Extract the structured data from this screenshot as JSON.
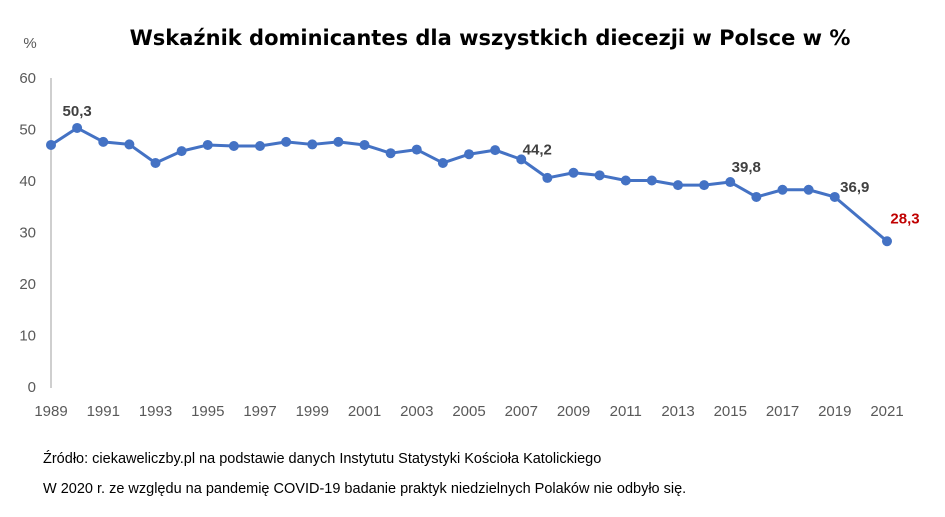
{
  "chart_data": {
    "type": "line",
    "title": "Wskaźnik dominicantes dla wszystkich diecezji w Polsce w %",
    "ylabel": "%",
    "xlabel": "",
    "ylim": [
      0,
      60
    ],
    "yticks": [
      0,
      10,
      20,
      30,
      40,
      50,
      60
    ],
    "xticks": [
      1989,
      1991,
      1993,
      1995,
      1997,
      1999,
      2001,
      2003,
      2005,
      2007,
      2009,
      2011,
      2013,
      2015,
      2017,
      2019,
      2021
    ],
    "grid": false,
    "series": [
      {
        "color": "#4472C4",
        "x": [
          1989,
          1990,
          1991,
          1992,
          1993,
          1994,
          1995,
          1996,
          1997,
          1998,
          1999,
          2000,
          2001,
          2002,
          2003,
          2004,
          2005,
          2006,
          2007,
          2008,
          2009,
          2010,
          2011,
          2012,
          2013,
          2014,
          2015,
          2016,
          2017,
          2018,
          2019,
          2021
        ],
        "y": [
          47.0,
          50.3,
          47.6,
          47.1,
          43.5,
          45.8,
          47.0,
          46.8,
          46.8,
          47.6,
          47.1,
          47.6,
          47.0,
          45.4,
          46.1,
          43.5,
          45.2,
          46.0,
          44.2,
          40.6,
          41.6,
          41.1,
          40.1,
          40.1,
          39.2,
          39.2,
          39.8,
          36.9,
          38.3,
          38.3,
          36.9,
          28.3
        ]
      }
    ],
    "data_labels": [
      {
        "x": 1990,
        "text": "50,3",
        "color": "#404040"
      },
      {
        "x": 2007,
        "text": "44,2",
        "color": "#404040"
      },
      {
        "x": 2015,
        "text": "39,8",
        "color": "#404040"
      },
      {
        "x": 2019,
        "text": "36,9",
        "color": "#404040"
      },
      {
        "x": 2021,
        "text": "28,3",
        "color": "#C00000"
      }
    ]
  },
  "footer": {
    "source": "Źródło: ciekaweliczby.pl na podstawie danych Instytutu Statystyki Kościoła Katolickiego",
    "note": "W 2020 r. ze względu na pandemię COVID-19 badanie praktyk niedzielnych Polaków nie odbyło się."
  }
}
